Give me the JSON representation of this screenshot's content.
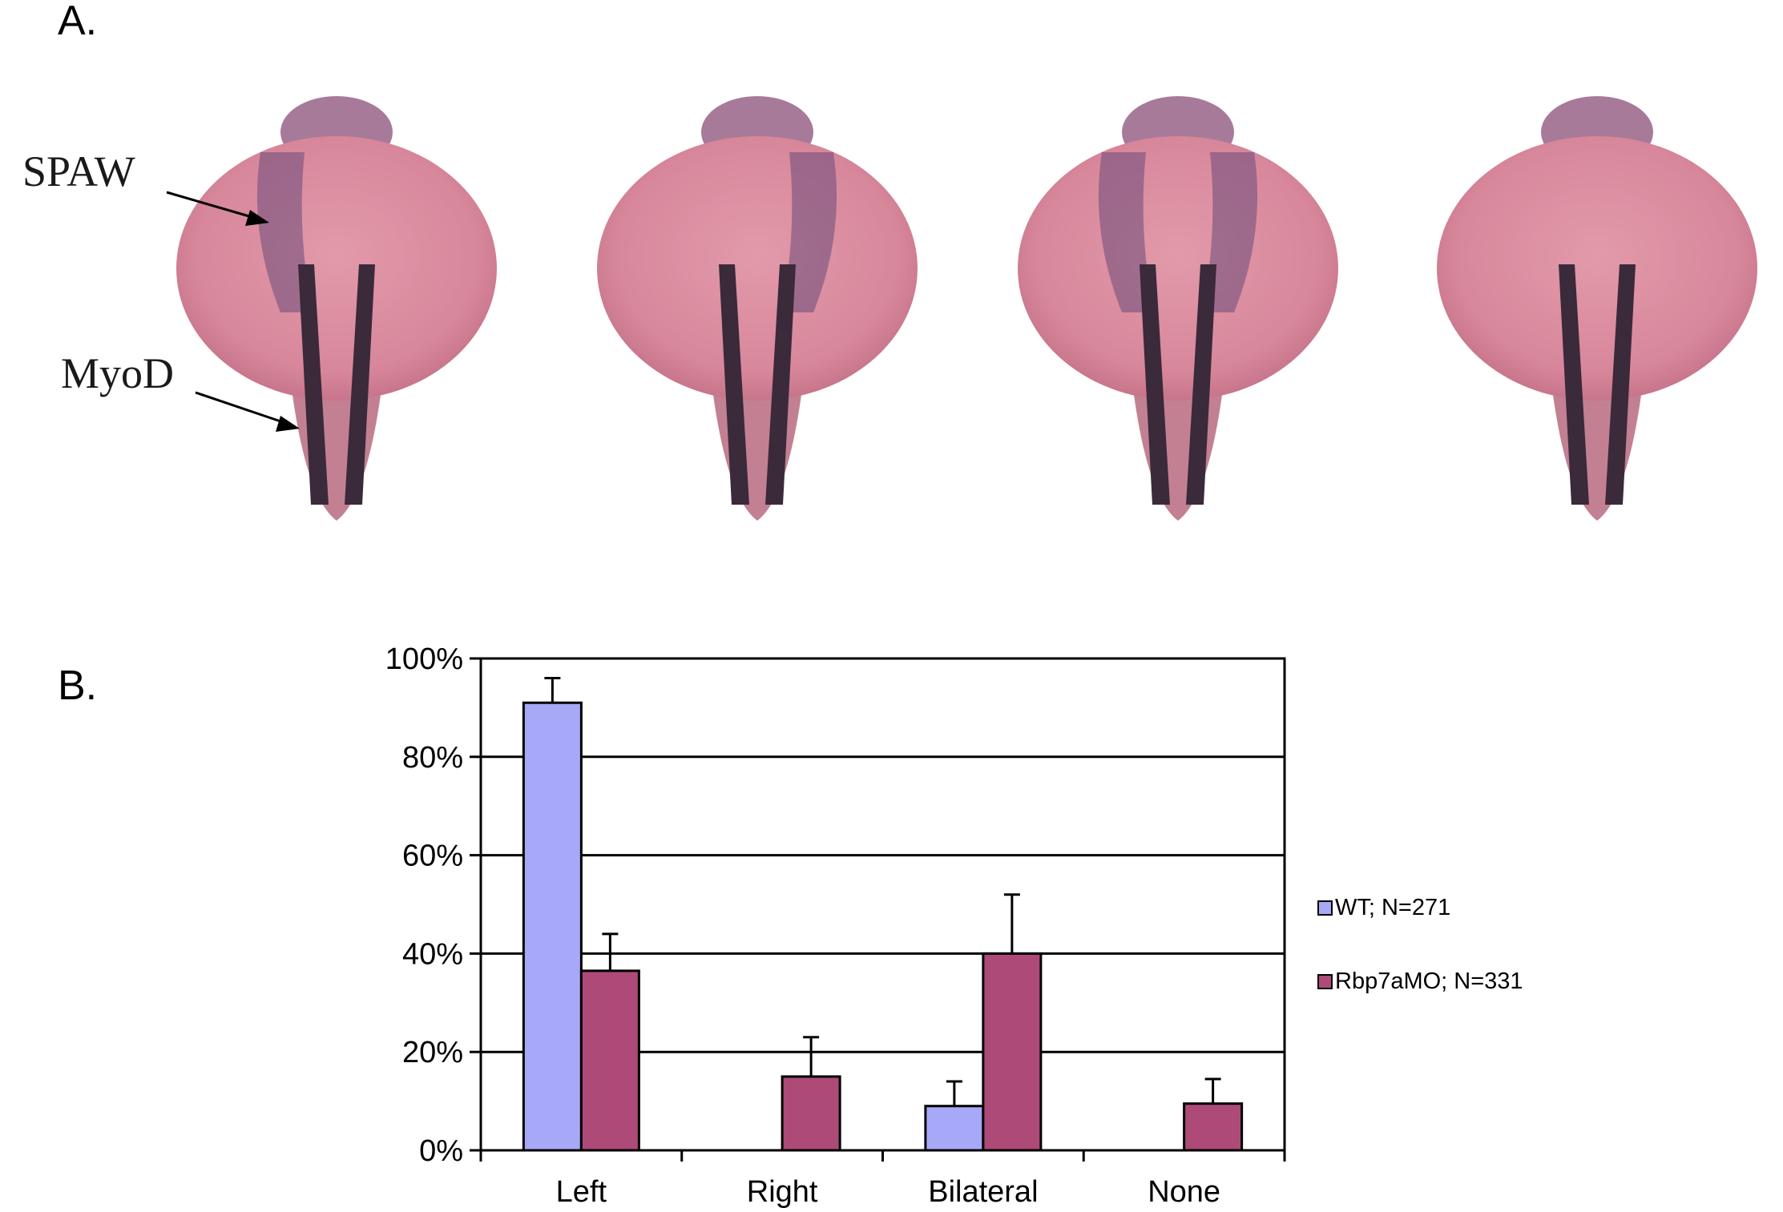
{
  "panel_a": {
    "label": "A.",
    "annotations": {
      "spaw": "SPAW",
      "myod": "MyoD"
    },
    "embryo_patterns": [
      "left",
      "right",
      "bilateral",
      "none"
    ],
    "colors": {
      "yolk": "#d98a9c",
      "yolk_edge": "#b96a80",
      "stain": "#3a2a3a",
      "spaw_stain": "#6a4a7a"
    }
  },
  "panel_b": {
    "label": "B."
  },
  "chart_data": {
    "type": "bar",
    "categories": [
      "Left",
      "Right",
      "Bilateral",
      "None"
    ],
    "series": [
      {
        "name": "WT; N=271",
        "color": "#a8a8f8",
        "values": [
          91,
          0,
          9,
          0
        ],
        "errors": [
          5,
          0,
          5,
          0
        ]
      },
      {
        "name": "Rbp7aMO; N=331",
        "color": "#ad4a78",
        "values": [
          36.5,
          15,
          40,
          9.5
        ],
        "errors": [
          7.5,
          8,
          12,
          5
        ]
      }
    ],
    "ylim": [
      0,
      100
    ],
    "yticks": [
      "0%",
      "20%",
      "40%",
      "60%",
      "80%",
      "100%"
    ],
    "grid": true,
    "legend_position": "right"
  }
}
